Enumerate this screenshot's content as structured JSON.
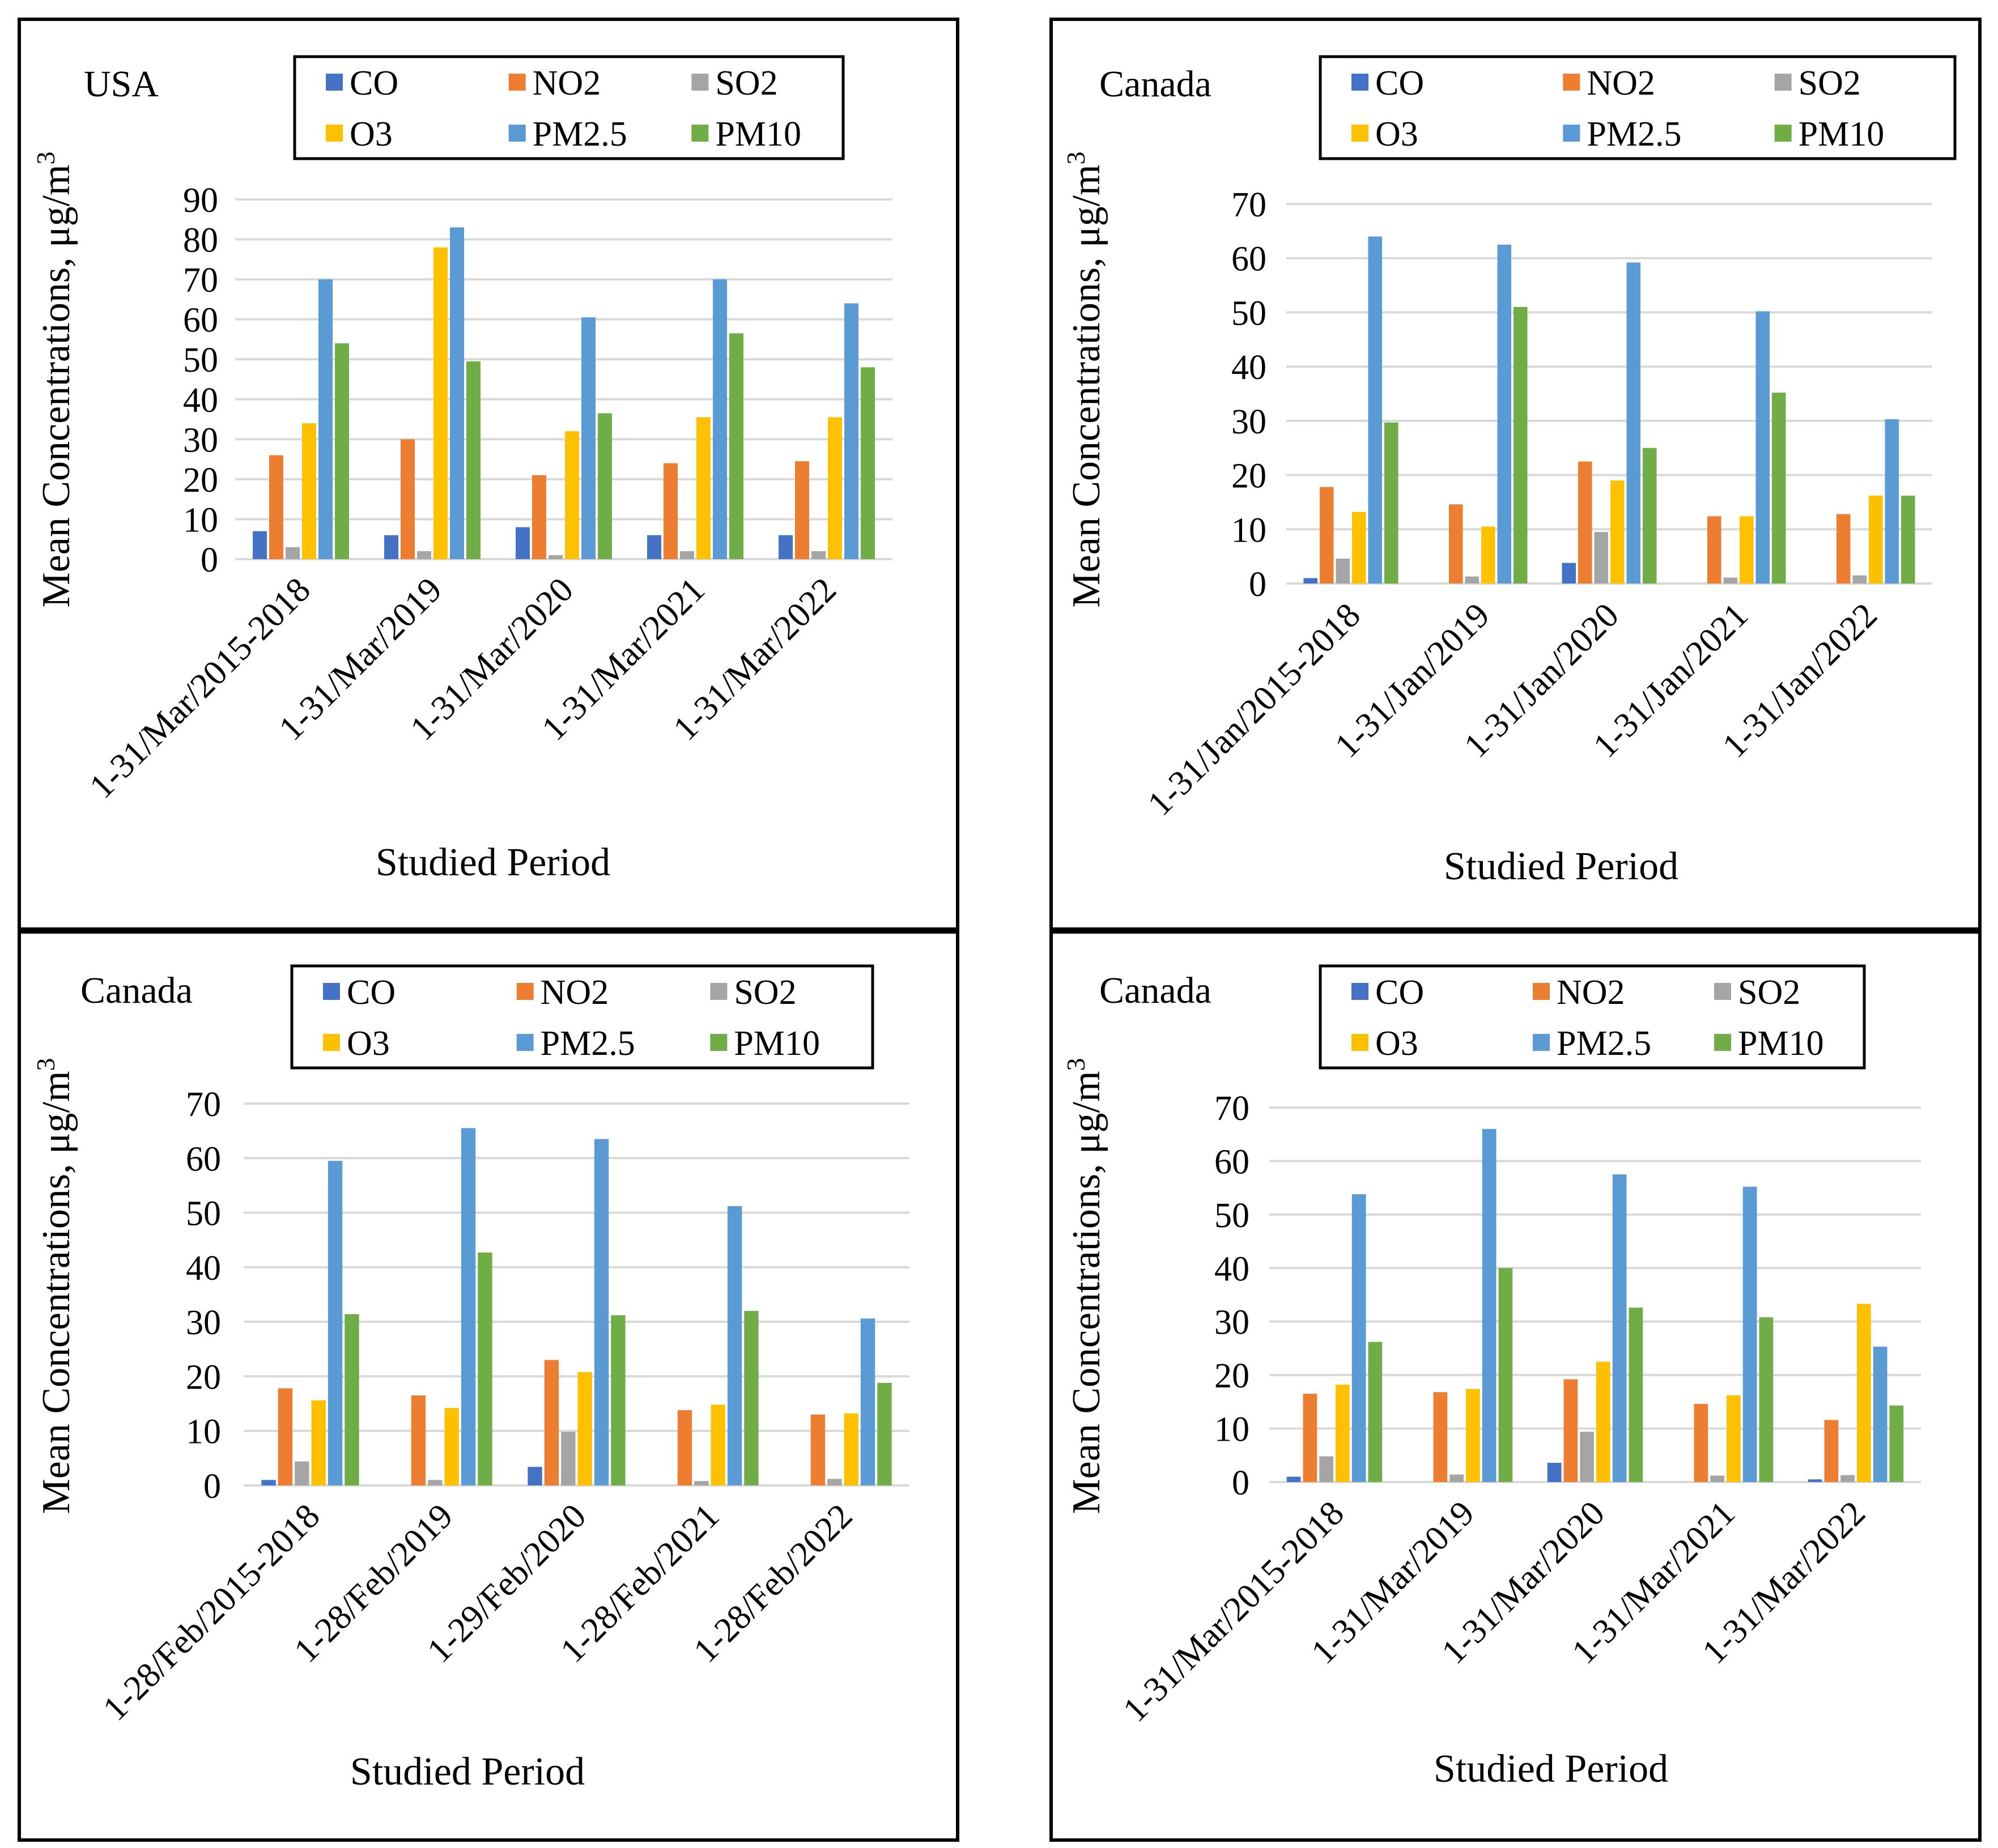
{
  "figure": {
    "series": [
      {
        "name": "CO",
        "color": "#4472C4"
      },
      {
        "name": "NO2",
        "color": "#ED7D31"
      },
      {
        "name": "SO2",
        "color": "#A5A5A5"
      },
      {
        "name": "O3",
        "color": "#FFC000"
      },
      {
        "name": "PM2.5",
        "color": "#5B9BD5"
      },
      {
        "name": "PM10",
        "color": "#70AD47"
      }
    ],
    "xlabel": "Studied Period",
    "ylabel_prefix": "Mean Concentrations, μg/m",
    "ylabel_superscript": "3"
  },
  "chart_data": [
    {
      "type": "bar",
      "title": "USA",
      "xlabel": "Studied Period",
      "ylabel": "Mean Concentrations, μg/m3",
      "ylim": [
        0,
        90
      ],
      "yticks": [
        0,
        10,
        20,
        30,
        40,
        50,
        60,
        70,
        80,
        90
      ],
      "categories": [
        "1-31/Mar/2015-2018",
        "1-31/Mar/2019",
        "1-31/Mar/2020",
        "1-31/Mar/2021",
        "1-31/Mar/2022"
      ],
      "series": [
        {
          "name": "CO",
          "values": [
            7,
            6,
            8,
            6,
            6
          ]
        },
        {
          "name": "NO2",
          "values": [
            26,
            30,
            21,
            24,
            24.5
          ]
        },
        {
          "name": "SO2",
          "values": [
            3,
            2,
            1,
            2,
            2
          ]
        },
        {
          "name": "O3",
          "values": [
            34,
            78,
            32,
            35.5,
            35.5
          ]
        },
        {
          "name": "PM2.5",
          "values": [
            70,
            83,
            60.5,
            70,
            64
          ]
        },
        {
          "name": "PM10",
          "values": [
            54,
            49.5,
            36.5,
            56.5,
            48
          ]
        }
      ]
    },
    {
      "type": "bar",
      "title": "Canada",
      "xlabel": "Studied Period",
      "ylabel": "Mean Concentrations, μg/m3",
      "ylim": [
        0,
        70
      ],
      "yticks": [
        0,
        10,
        20,
        30,
        40,
        50,
        60,
        70
      ],
      "categories": [
        "1-31/Jan/2015-2018",
        "1-31/Jan/2019",
        "1-31/Jan/2020",
        "1-31/Jan/2021",
        "1-31/Jan/2022"
      ],
      "series": [
        {
          "name": "CO",
          "values": [
            1,
            0,
            3.8,
            0,
            0
          ]
        },
        {
          "name": "NO2",
          "values": [
            17.8,
            14.6,
            22.5,
            12.4,
            12.8
          ]
        },
        {
          "name": "SO2",
          "values": [
            4.6,
            1.3,
            9.5,
            1.1,
            1.5
          ]
        },
        {
          "name": "O3",
          "values": [
            13.2,
            10.5,
            19,
            12.4,
            16.2
          ]
        },
        {
          "name": "PM2.5",
          "values": [
            64,
            62.5,
            59.2,
            50.2,
            30.3
          ]
        },
        {
          "name": "PM10",
          "values": [
            29.7,
            51,
            25,
            35.2,
            16.2
          ]
        }
      ]
    },
    {
      "type": "bar",
      "title": "Canada",
      "xlabel": "Studied Period",
      "ylabel": "Mean Concentrations, μg/m3",
      "ylim": [
        0,
        70
      ],
      "yticks": [
        0,
        10,
        20,
        30,
        40,
        50,
        60,
        70
      ],
      "categories": [
        "1-28/Feb/2015-2018",
        "1-28/Feb/2019",
        "1-29/Feb/2020",
        "1-28/Feb/2021",
        "1-28/Feb/2022"
      ],
      "series": [
        {
          "name": "CO",
          "values": [
            1,
            0,
            3.4,
            0,
            0
          ]
        },
        {
          "name": "NO2",
          "values": [
            17.8,
            16.5,
            23,
            13.8,
            13
          ]
        },
        {
          "name": "SO2",
          "values": [
            4.4,
            1,
            9.8,
            0.8,
            1.2
          ]
        },
        {
          "name": "O3",
          "values": [
            15.6,
            14.2,
            20.8,
            14.8,
            13.2
          ]
        },
        {
          "name": "PM2.5",
          "values": [
            59.5,
            65.5,
            63.5,
            51.2,
            30.6
          ]
        },
        {
          "name": "PM10",
          "values": [
            31.4,
            42.7,
            31.2,
            32,
            18.8
          ]
        }
      ]
    },
    {
      "type": "bar",
      "title": "Canada",
      "xlabel": "Studied Period",
      "ylabel": "Mean Concentrations, μg/m3",
      "ylim": [
        0,
        70
      ],
      "yticks": [
        0,
        10,
        20,
        30,
        40,
        50,
        60,
        70
      ],
      "categories": [
        "1-31/Mar/2015-2018",
        "1-31/Mar/2019",
        "1-31/Mar/2020",
        "1-31/Mar/2021",
        "1-31/Mar/2022"
      ],
      "series": [
        {
          "name": "CO",
          "values": [
            1,
            0,
            3.6,
            0,
            0.5
          ]
        },
        {
          "name": "NO2",
          "values": [
            16.5,
            16.8,
            19.2,
            14.6,
            11.6
          ]
        },
        {
          "name": "SO2",
          "values": [
            4.8,
            1.4,
            9.4,
            1.2,
            1.3
          ]
        },
        {
          "name": "O3",
          "values": [
            18.2,
            17.4,
            22.5,
            16.2,
            33.3
          ]
        },
        {
          "name": "PM2.5",
          "values": [
            53.8,
            66,
            57.5,
            55.2,
            25.3
          ]
        },
        {
          "name": "PM10",
          "values": [
            26.2,
            40,
            32.6,
            30.8,
            14.3
          ]
        }
      ]
    }
  ]
}
